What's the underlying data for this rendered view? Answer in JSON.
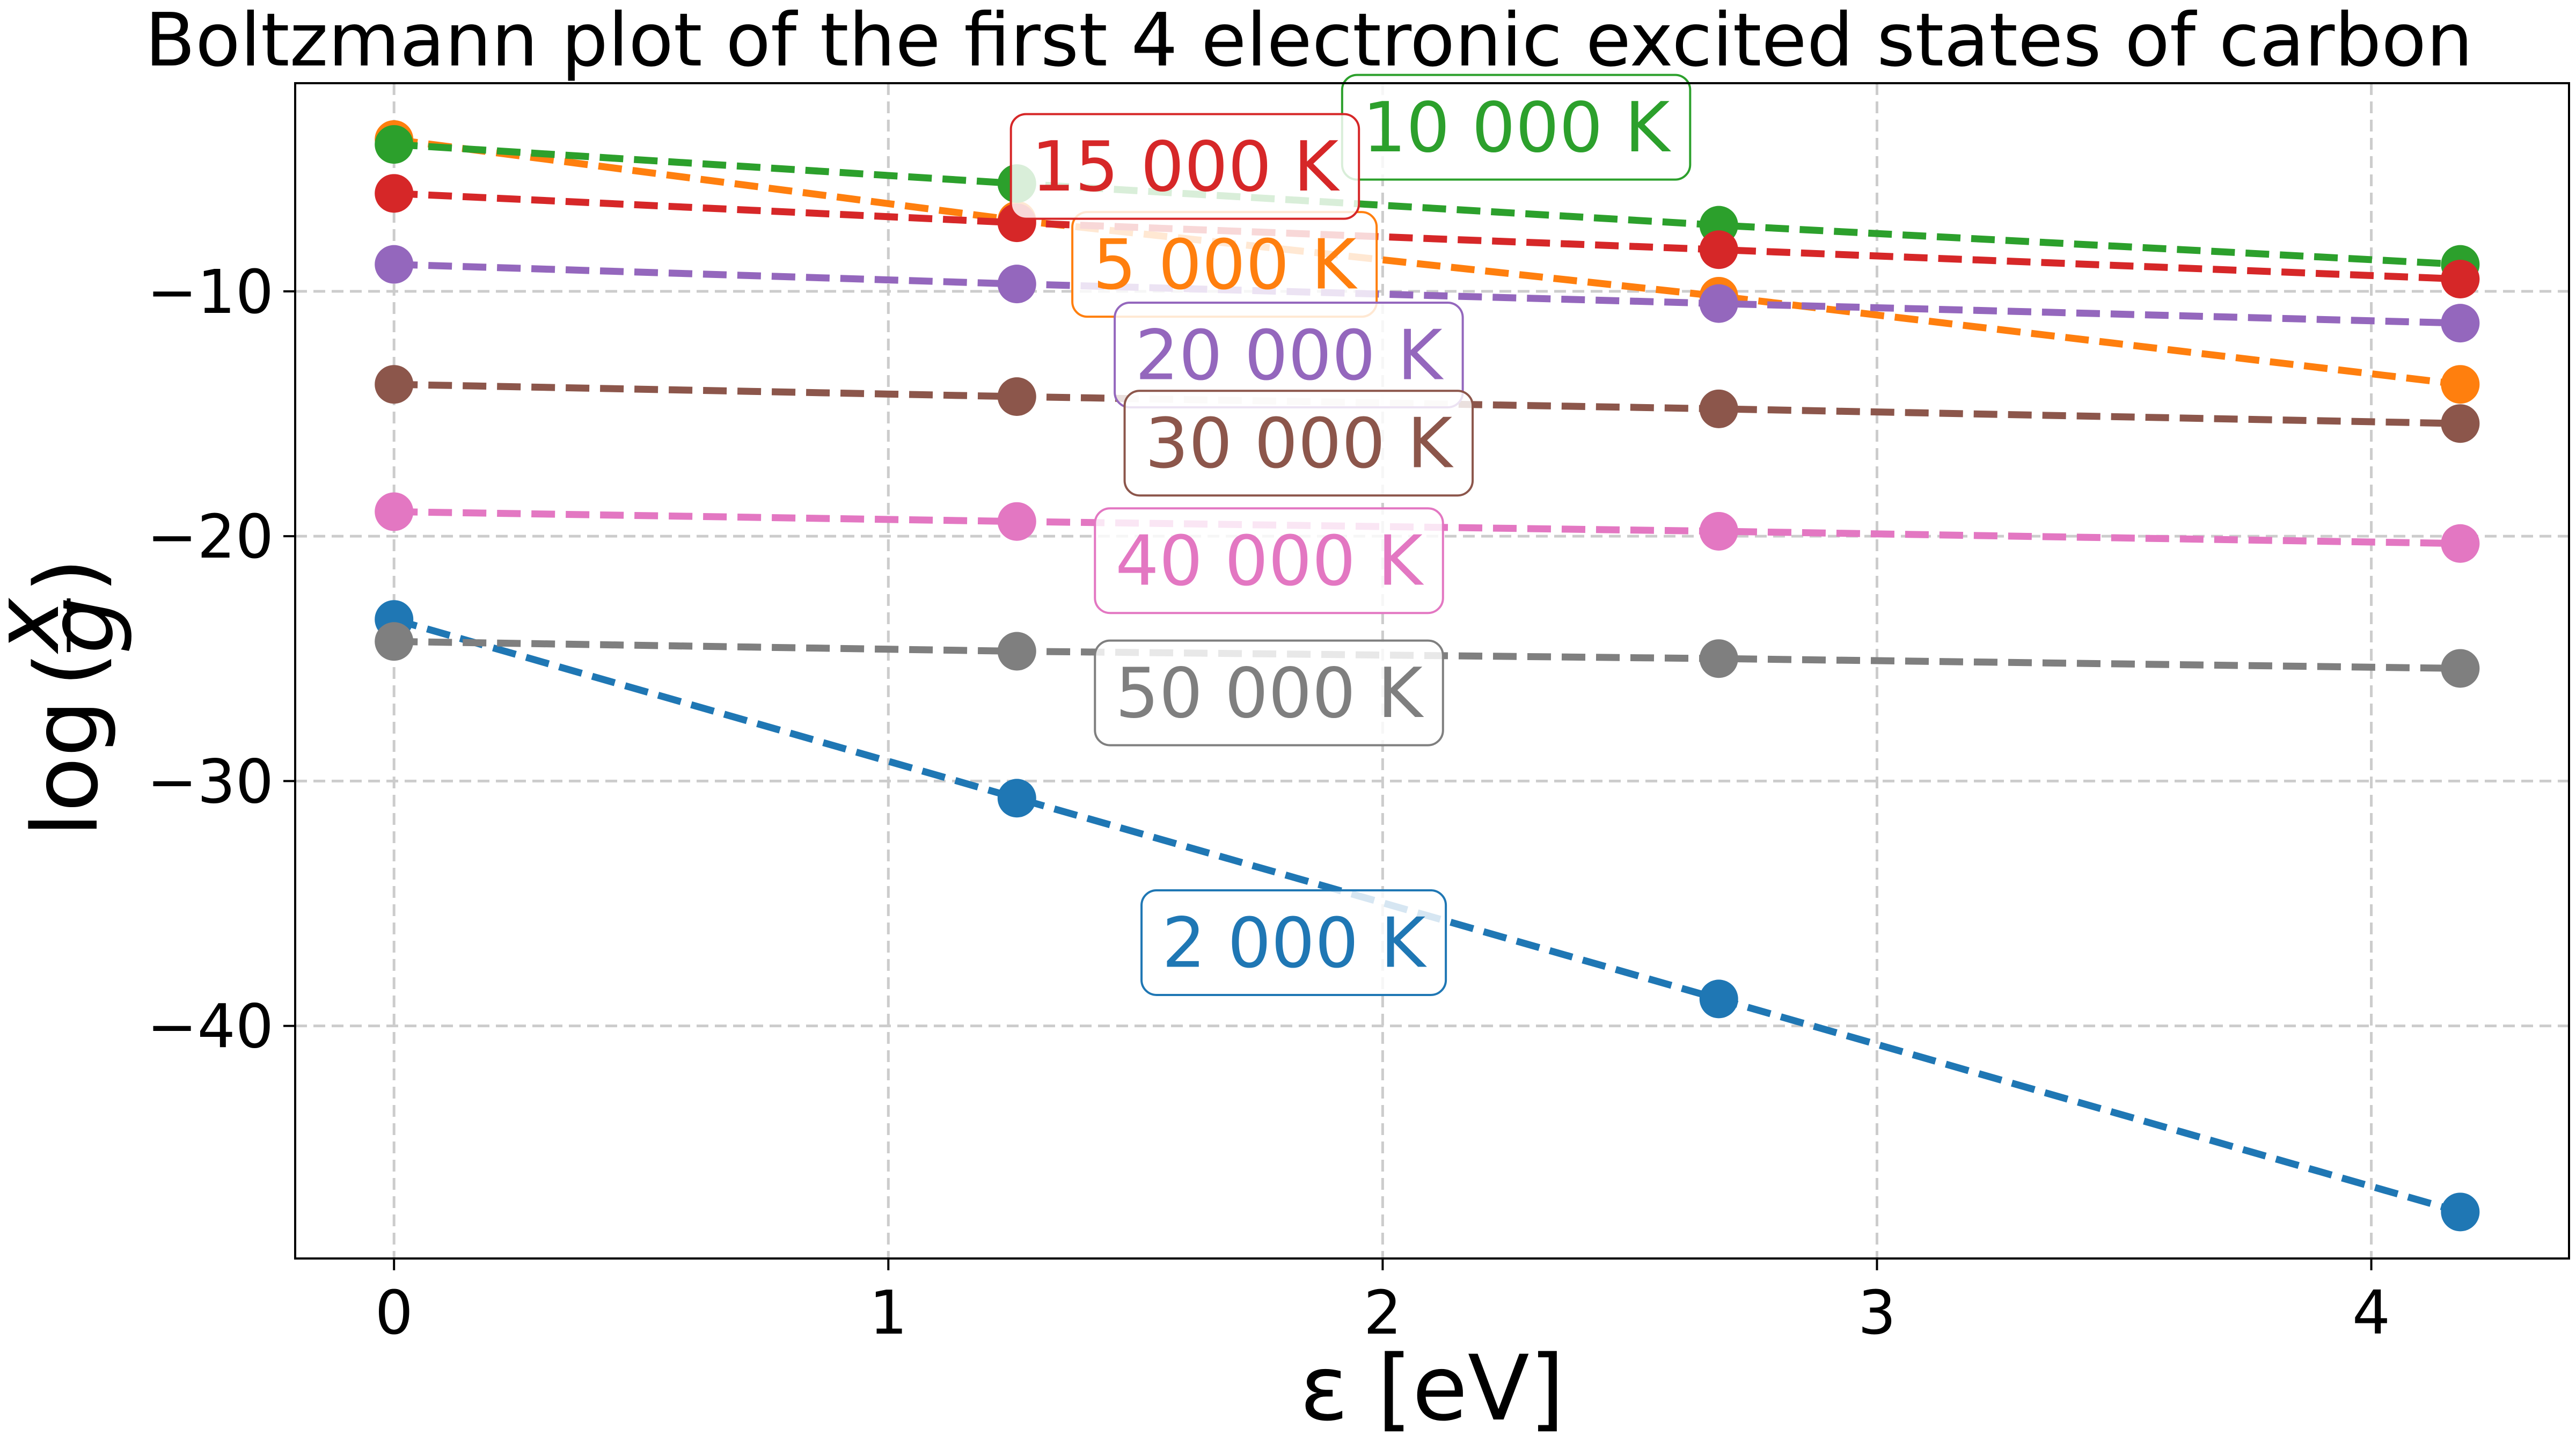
{
  "chart_data": {
    "type": "line",
    "title": "Boltzmann plot of the first 4 electronic excited states of carbon",
    "xlabel": "ε [eV]",
    "ylabel_main": "log",
    "ylabel_numerator": "x",
    "ylabel_denominator": "g",
    "xlim": [
      -0.2,
      4.4
    ],
    "ylim": [
      -49.5,
      -1.5
    ],
    "xticks": [
      0,
      1,
      2,
      3,
      4
    ],
    "yticks": [
      -10,
      -20,
      -30,
      -40
    ],
    "xtick_labels": [
      "0",
      "1",
      "2",
      "3",
      "4"
    ],
    "ytick_labels": [
      "−10",
      "−20",
      "−30",
      "−40"
    ],
    "grid": true,
    "x": [
      0,
      1.26,
      2.68,
      4.18
    ],
    "series": [
      {
        "name": "2 000 K",
        "color": "#1f77b4",
        "values": [
          -23.4,
          -30.7,
          -38.9,
          -47.6
        ],
        "label_pos": [
          1.82,
          -36.6
        ]
      },
      {
        "name": "5 000 K",
        "color": "#ff7f0e",
        "values": [
          -3.8,
          -7.1,
          -10.2,
          -13.8
        ],
        "label_pos": [
          1.68,
          -8.9
        ]
      },
      {
        "name": "10 000 K",
        "color": "#2ca02c",
        "values": [
          -4.0,
          -5.6,
          -7.3,
          -8.9
        ],
        "label_pos": [
          2.27,
          -3.3
        ]
      },
      {
        "name": "15 000 K",
        "color": "#d62728",
        "values": [
          -6.0,
          -7.2,
          -8.3,
          -9.5
        ],
        "label_pos": [
          1.6,
          -4.9
        ]
      },
      {
        "name": "20 000 K",
        "color": "#9467bd",
        "values": [
          -8.9,
          -9.7,
          -10.5,
          -11.3
        ],
        "label_pos": [
          1.81,
          -12.6
        ]
      },
      {
        "name": "30 000 K",
        "color": "#8c564b",
        "values": [
          -13.8,
          -14.3,
          -14.8,
          -15.4
        ],
        "label_pos": [
          1.83,
          -16.2
        ]
      },
      {
        "name": "40 000 K",
        "color": "#e377c2",
        "values": [
          -19.0,
          -19.4,
          -19.8,
          -20.3
        ],
        "label_pos": [
          1.77,
          -21.0
        ]
      },
      {
        "name": "50 000 K",
        "color": "#7f7f7f",
        "values": [
          -24.3,
          -24.7,
          -25.0,
          -25.4
        ],
        "label_pos": [
          1.77,
          -26.4
        ]
      }
    ]
  }
}
